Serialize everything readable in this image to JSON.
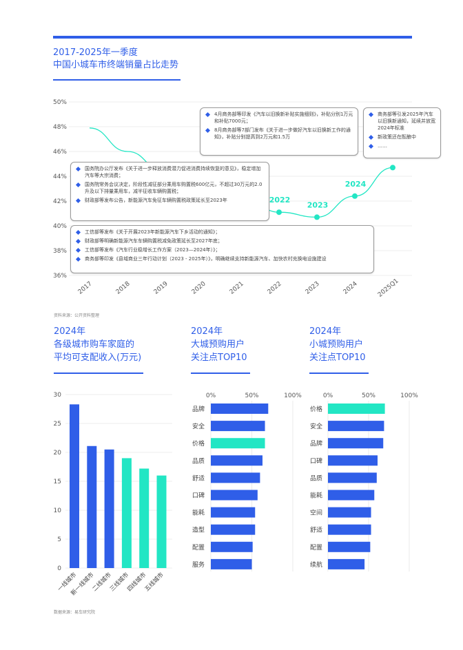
{
  "header": {
    "title_line1": "2017-2025年一季度",
    "title_line2": "中国小城车市终端销量占比走势"
  },
  "source1": "资料来源：公开资料整理",
  "source2": "数据来源：易车研究院",
  "annotations": {
    "box_top_middle": [
      "4月商务部等印发《汽车以旧换新补贴实施细则》，补贴分别1万元和补贴7000元；",
      "8月商务部等7部门发布《关于进一步做好汽车以旧换新工作的通知》，补贴分别提高到2万元和1.5万"
    ],
    "box_top_right": [
      "商务部等引发2025年汽车以旧换新通知，延续并放宽2024年标准",
      "新政策还在酝酿中",
      "……"
    ],
    "box_middle_left": [
      "国务院办公厅发布《关于进一步释放消费潜力促进消费持续恢复的意见》，稳定增加汽车等大宗消费；",
      "国务院常务会议决定，阶段性减征部分乘用车购置税600亿元，不超过30万元的2.0升及以下排量乘用车，减半征收车辆购置税；",
      "财政部等发布公告，新能源汽车免征车辆购置税政策延长至2023年"
    ],
    "box_bottom": [
      "工信部等发布《关于开展2023年新能源汽车下乡活动的通知》；",
      "财政部等明确新能源汽车车辆购置税减免政策延长至2027年底；",
      "工信部等发布《汽车行业稳增长工作方案（2023—2024年）》；",
      "商务部等印发《县域商业三年行动计划（2023 - 2025年）》，明确继续支持新能源汽车、加快农村充换电设施建设"
    ]
  },
  "chart_titles": {
    "income": [
      "2024年",
      "各级城市购车家庭的",
      "平均可支配收入(万元)"
    ],
    "big_city": [
      "2024年",
      "大城预购用户",
      "关注点TOP10"
    ],
    "small_city": [
      "2024年",
      "小城预购用户",
      "关注点TOP10"
    ]
  },
  "colors": {
    "blue": "#2f5ee8",
    "teal": "#22e6c4",
    "grid": "#dddddd"
  },
  "chart_data": [
    {
      "type": "line",
      "categories": [
        "2017",
        "2018",
        "2019",
        "2020",
        "2021",
        "2022",
        "2023",
        "2024",
        "2025Q1"
      ],
      "values": [
        47.9,
        46.0,
        44.3,
        43.2,
        42.5,
        41.1,
        40.7,
        42.4,
        44.7
      ],
      "highlight_labels": {
        "2022": "2022",
        "2023": "2023",
        "2024": "2024",
        "2025Q1": "2025"
      },
      "yticks": [
        "36%",
        "38%",
        "40%",
        "42%",
        "44%",
        "46%",
        "48%",
        "50%"
      ],
      "ylim": [
        36,
        50
      ],
      "grid": true
    },
    {
      "type": "bar",
      "categories": [
        "一线城市",
        "新一线城市",
        "二线城市",
        "三线城市",
        "四线城市",
        "五线城市"
      ],
      "values": [
        28.3,
        21.1,
        20.5,
        19.0,
        17.2,
        16.0
      ],
      "yticks": [
        "0",
        "5",
        "10",
        "15",
        "20",
        "25",
        "30"
      ],
      "ylim": [
        0,
        30
      ],
      "bar_colors": [
        "#2f5ee8",
        "#2f5ee8",
        "#2f5ee8",
        "#22e6c4",
        "#22e6c4",
        "#22e6c4"
      ],
      "grid": true
    },
    {
      "type": "bar",
      "orientation": "horizontal",
      "categories": [
        "品牌",
        "安全",
        "价格",
        "品质",
        "舒适",
        "口碑",
        "能耗",
        "造型",
        "配置",
        "服务"
      ],
      "values": [
        70,
        66,
        66,
        63,
        60,
        57,
        54,
        54,
        51,
        50
      ],
      "highlight": [
        "价格"
      ],
      "xticks": [
        "0%",
        "50%",
        "100%"
      ],
      "xlim": [
        0,
        100
      ]
    },
    {
      "type": "bar",
      "orientation": "horizontal",
      "categories": [
        "价格",
        "安全",
        "品牌",
        "口碑",
        "品质",
        "能耗",
        "空间",
        "舒适",
        "配置",
        "续航"
      ],
      "values": [
        70,
        69,
        68,
        61,
        60,
        57,
        53,
        53,
        52,
        45
      ],
      "highlight": [
        "价格"
      ],
      "xticks": [
        "0%",
        "50%",
        "100%"
      ],
      "xlim": [
        0,
        100
      ]
    }
  ]
}
